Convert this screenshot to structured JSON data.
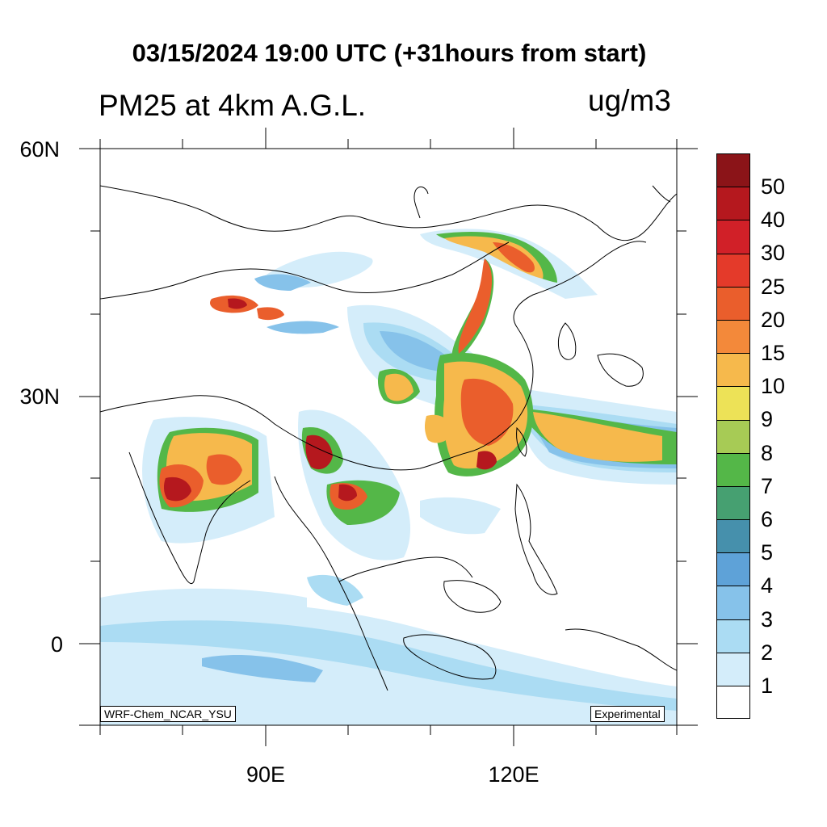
{
  "header": {
    "title": "03/15/2024 19:00 UTC (+31hours from start)",
    "subtitle": "PM25 at 4km A.G.L.",
    "units": "ug/m3"
  },
  "axes": {
    "lat_labels": [
      "60N",
      "30N",
      "0"
    ],
    "lon_labels": [
      "90E",
      "120E"
    ]
  },
  "corner_labels": {
    "model": "WRF-Chem_NCAR_YSU",
    "status": "Experimental"
  },
  "colorbar": {
    "colors": [
      "#8b1418",
      "#b5181e",
      "#d12028",
      "#e43a2a",
      "#ea5e2c",
      "#f3893a",
      "#f6b94c",
      "#ede257",
      "#a7cb55",
      "#54b748",
      "#46a071",
      "#4690ac",
      "#5ea2d8",
      "#86c2ea",
      "#abdcf3",
      "#d4edfa",
      "#ffffff"
    ],
    "labels": [
      "50",
      "40",
      "30",
      "25",
      "20",
      "15",
      "10",
      "9",
      "8",
      "7",
      "6",
      "5",
      "4",
      "3",
      "2",
      "1"
    ]
  },
  "map": {
    "lon_range": [
      70,
      140
    ],
    "lat_range": [
      -10,
      60
    ],
    "plumes": [
      {
        "level": 3,
        "region": "north-china-to-yellow-sea"
      },
      {
        "level": 7,
        "region": "east-china-coast"
      },
      {
        "level": 12,
        "region": "northeast-china"
      },
      {
        "level": 13,
        "region": "myanmar-peak"
      },
      {
        "level": 11,
        "region": "central-india"
      }
    ]
  }
}
